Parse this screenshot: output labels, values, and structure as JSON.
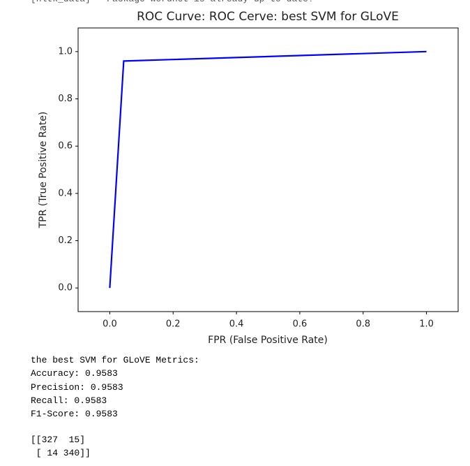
{
  "log_line": "[nltk_data]   Package wordnet is already up-to-date!",
  "chart_data": {
    "type": "line",
    "title": "ROC Curve: ROC Cerve: best SVM for GLoVE",
    "x_label": "FPR (False Positive Rate)",
    "y_label": "TPR (True Positive Rate)",
    "x": [
      0,
      0.044,
      1
    ],
    "values": [
      0,
      0.96,
      1
    ],
    "color": "#0000ff",
    "xlim": [
      -0.1,
      1.1
    ],
    "ylim": [
      -0.1,
      1.1
    ],
    "xticks": [
      {
        "value": 0,
        "label": "0.0"
      },
      {
        "value": 0.2,
        "label": "0.2"
      },
      {
        "value": 0.4,
        "label": "0.4"
      },
      {
        "value": 0.6,
        "label": "0.6"
      },
      {
        "value": 0.8,
        "label": "0.8"
      },
      {
        "value": 1,
        "label": "1.0"
      }
    ],
    "yticks": [
      {
        "value": 0,
        "label": "0.0"
      },
      {
        "value": 0.2,
        "label": "0.2"
      },
      {
        "value": 0.4,
        "label": "0.4"
      },
      {
        "value": 0.6,
        "label": "0.6"
      },
      {
        "value": 0.8,
        "label": "0.8"
      },
      {
        "value": 1,
        "label": "1.0"
      }
    ],
    "grid": false
  },
  "metrics": [
    "the best SVM for GLoVE Metrics:",
    "Accuracy: 0.9583",
    "Precision: 0.9583",
    "Recall: 0.9583",
    "F1-Score: 0.9583"
  ],
  "confusion_matrix": [
    "[[327  15]",
    " [ 14 340]]"
  ]
}
